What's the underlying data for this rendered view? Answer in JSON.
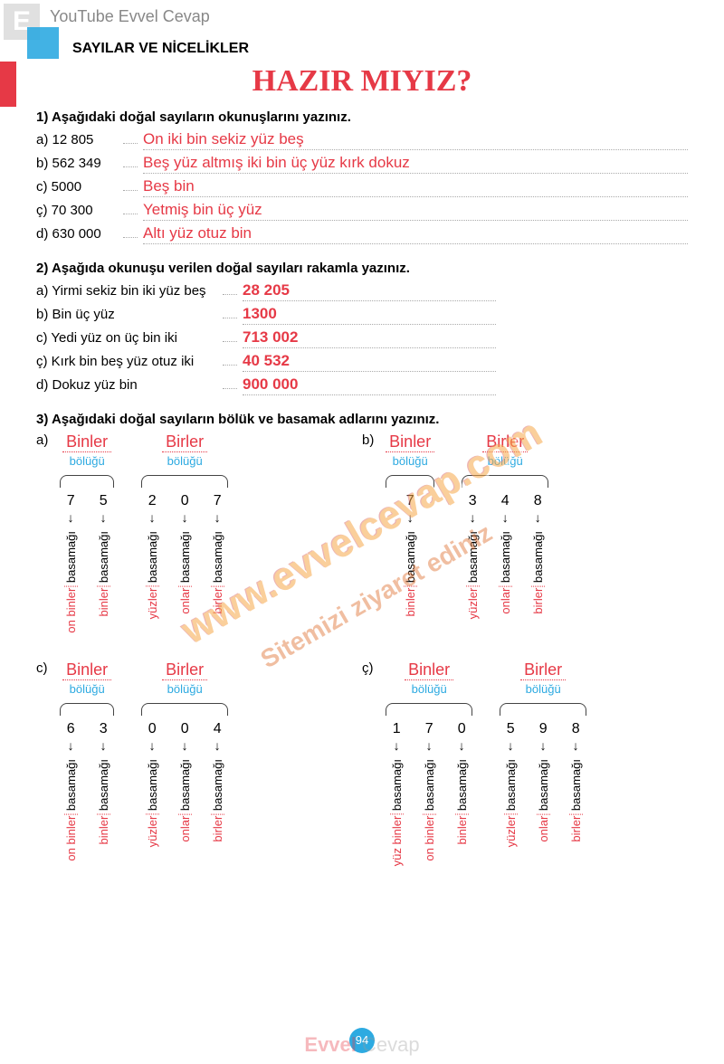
{
  "corner": {
    "letter": "E",
    "yt": "YouTube Evvel Cevap"
  },
  "header": "SAYILAR VE NİCELİKLER",
  "title": "HAZIR MIYIZ?",
  "q1": {
    "prompt": "1) Aşağıdaki doğal sayıların okunuşlarını yazınız.",
    "items": [
      {
        "label": "a) 12 805",
        "answer": "On iki bin sekiz yüz beş"
      },
      {
        "label": "b) 562 349",
        "answer": "Beş yüz altmış iki bin üç yüz kırk dokuz"
      },
      {
        "label": "c) 5000",
        "answer": "Beş bin"
      },
      {
        "label": "ç) 70 300",
        "answer": "Yetmiş bin üç yüz"
      },
      {
        "label": "d) 630 000",
        "answer": "Altı yüz otuz bin"
      }
    ]
  },
  "q2": {
    "prompt": "2) Aşağıda okunuşu verilen doğal sayıları rakamla yazınız.",
    "items": [
      {
        "label": "a) Yirmi sekiz bin iki yüz beş",
        "answer": "28 205"
      },
      {
        "label": "b) Bin üç yüz",
        "answer": "1300"
      },
      {
        "label": "c) Yedi yüz on üç bin iki",
        "answer": "713 002"
      },
      {
        "label": "ç) Kırk bin beş yüz otuz iki",
        "answer": "40 532"
      },
      {
        "label": "d) Dokuz yüz bin",
        "answer": "900 000"
      }
    ]
  },
  "q3": {
    "prompt": "3) Aşağıdaki doğal sayıların bölük ve basamak adlarını yazınız.",
    "group_title_thousands": "Binler",
    "group_title_ones": "Birler",
    "group_sub": "bölüğü",
    "basamagi": "basamağı",
    "places": {
      "yuz_binler": "yüz binler",
      "on_binler": "on binler",
      "binler": "binler",
      "yuzler": "yüzler",
      "onlar": "onlar",
      "birler": "birler"
    },
    "blocks": [
      {
        "label": "a)",
        "thousands": [
          "7",
          "5"
        ],
        "ones": [
          "2",
          "0",
          "7"
        ],
        "th_places": [
          "on_binler",
          "binler"
        ],
        "on_places": [
          "yuzler",
          "onlar",
          "birler"
        ]
      },
      {
        "label": "b)",
        "thousands": [
          "7"
        ],
        "ones": [
          "3",
          "4",
          "8"
        ],
        "th_places": [
          "binler"
        ],
        "on_places": [
          "yuzler",
          "onlar",
          "birler"
        ]
      },
      {
        "label": "c)",
        "thousands": [
          "6",
          "3"
        ],
        "ones": [
          "0",
          "0",
          "4"
        ],
        "th_places": [
          "on_binler",
          "binler"
        ],
        "on_places": [
          "yuzler",
          "onlar",
          "birler"
        ]
      },
      {
        "label": "ç)",
        "thousands": [
          "1",
          "7",
          "0"
        ],
        "ones": [
          "5",
          "9",
          "8"
        ],
        "th_places": [
          "yuz_binler",
          "on_binler",
          "binler"
        ],
        "on_places": [
          "yuzler",
          "onlar",
          "birler"
        ]
      }
    ]
  },
  "page_number": "94",
  "footer": {
    "e1": "Evvel",
    "e2": "Cevap"
  },
  "watermark1": "www.evvelcevap.com",
  "watermark2": "Sitemizi ziyaret ediniz"
}
